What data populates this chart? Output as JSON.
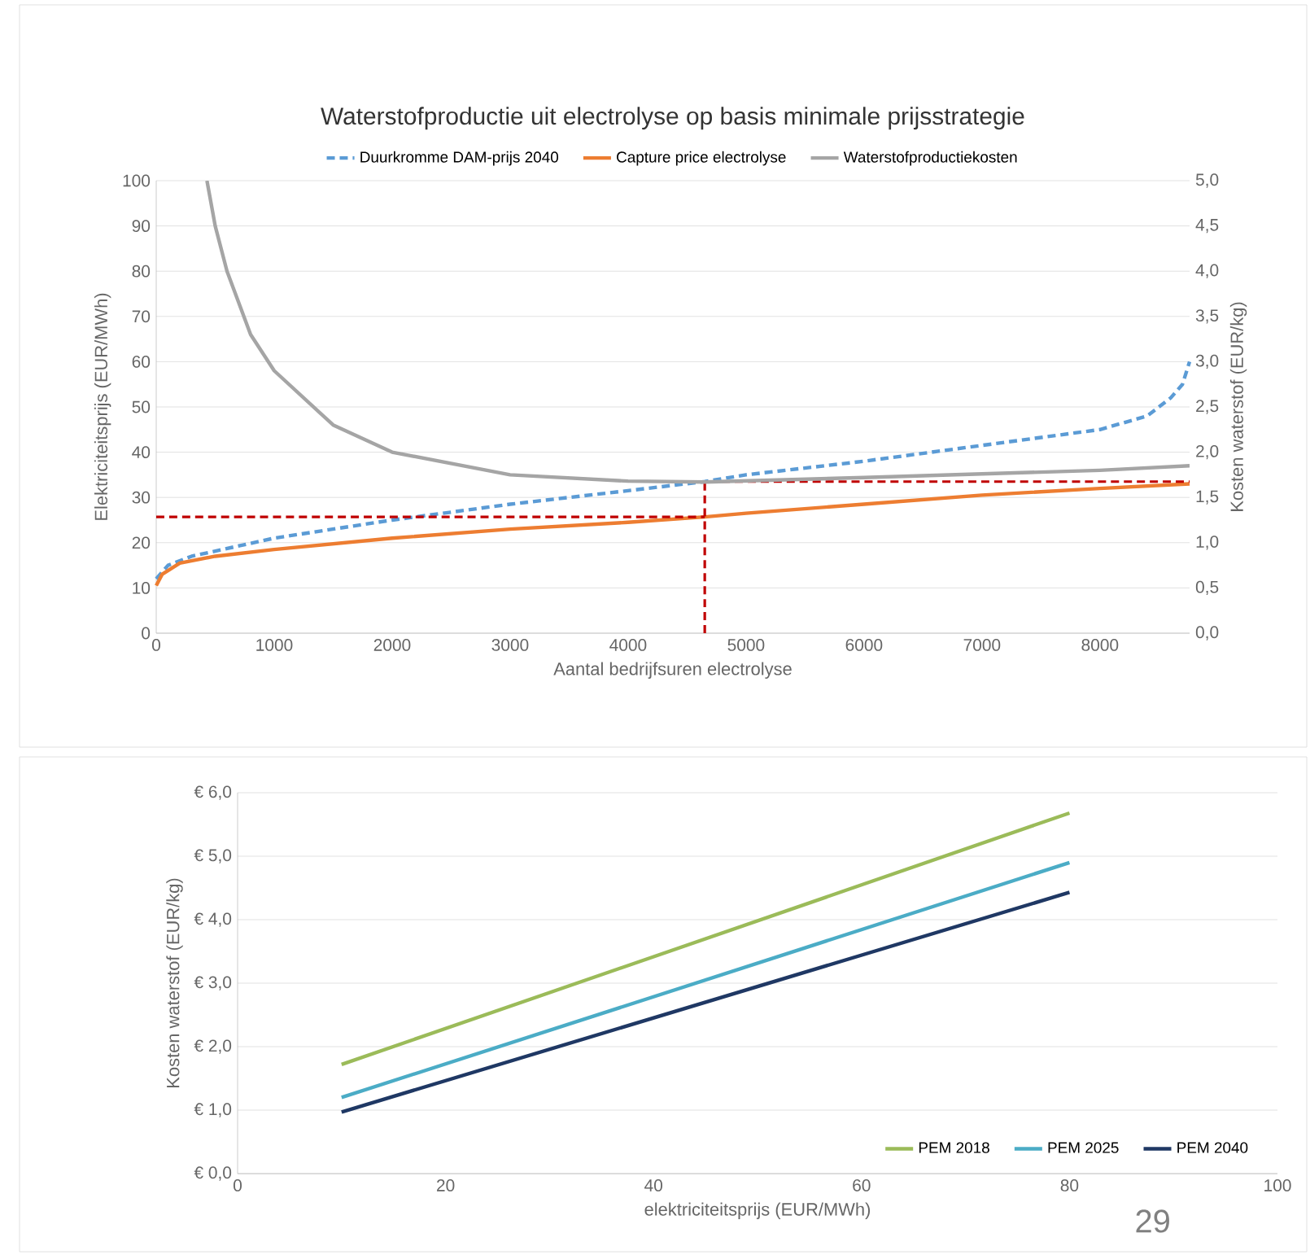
{
  "chart_data": [
    {
      "type": "line",
      "title": "Waterstofproductie uit electrolyse op basis minimale prijsstrategie",
      "xlabel": "Aantal bedrijfsuren electrolyse",
      "ylabel": "Elektriciteitsprijs (EUR/MWh)",
      "y2label": "Kosten waterstof (EUR/kg)",
      "xlim": [
        0,
        8760
      ],
      "xticks": [
        0,
        1000,
        2000,
        3000,
        4000,
        5000,
        6000,
        7000,
        8000
      ],
      "ylim": [
        0,
        100
      ],
      "yticks": [
        0,
        10,
        20,
        30,
        40,
        50,
        60,
        70,
        80,
        90,
        100
      ],
      "y2lim": [
        0,
        5
      ],
      "y2ticks": [
        {
          "value": 0,
          "label": "0,0"
        },
        {
          "value": 0.5,
          "label": "0,5"
        },
        {
          "value": 1,
          "label": "1,0"
        },
        {
          "value": 1.5,
          "label": "1,5"
        },
        {
          "value": 2,
          "label": "2,0"
        },
        {
          "value": 2.5,
          "label": "2,5"
        },
        {
          "value": 3,
          "label": "3,0"
        },
        {
          "value": 3.5,
          "label": "3,5"
        },
        {
          "value": 4,
          "label": "4,0"
        },
        {
          "value": 4.5,
          "label": "4,5"
        },
        {
          "value": 5,
          "label": "5,0"
        }
      ],
      "grid": "y",
      "legend": "top",
      "marker": "none",
      "series": [
        {
          "name": "Duurkromme DAM-prijs 2040",
          "color": "#5b9bd5",
          "line_style": "dashed",
          "x": [
            0,
            100,
            300,
            1000,
            2000,
            3000,
            4000,
            4650,
            5000,
            6000,
            7000,
            8000,
            8400,
            8600,
            8700,
            8760
          ],
          "values": [
            12,
            15,
            17,
            21,
            25,
            28.5,
            31.5,
            33.5,
            35,
            38,
            41.5,
            45,
            48,
            52,
            55,
            60
          ]
        },
        {
          "name": "Capture price electrolyse",
          "color": "#ed7d31",
          "line_style": "solid",
          "x": [
            0,
            50,
            200,
            500,
            1000,
            2000,
            3000,
            4000,
            4650,
            5000,
            6000,
            7000,
            8000,
            8760
          ],
          "values": [
            10.5,
            13,
            15.5,
            17,
            18.5,
            21,
            23,
            24.5,
            25.7,
            26.5,
            28.5,
            30.5,
            32,
            33
          ]
        },
        {
          "name": "Waterstofproductiekosten",
          "color": "#a5a5a5",
          "line_style": "solid",
          "axis": "y2",
          "x": [
            430,
            500,
            600,
            800,
            1000,
            1500,
            2000,
            3000,
            4000,
            4650,
            6000,
            7000,
            8000,
            8760
          ],
          "values": [
            5.0,
            4.5,
            4.0,
            3.3,
            2.9,
            2.3,
            2.0,
            1.75,
            1.68,
            1.67,
            1.72,
            1.76,
            1.8,
            1.85
          ]
        },
        {
          "color": "#c00000",
          "line_style": "dashed",
          "x": [
            0,
            4650
          ],
          "values": [
            25.7,
            25.7
          ]
        },
        {
          "color": "#c00000",
          "line_style": "dashed",
          "x": [
            4650,
            4650,
            8760
          ],
          "values": [
            0,
            33.5,
            33.5
          ]
        }
      ]
    },
    {
      "type": "line",
      "xlabel": "elektriciteitsprijs (EUR/MWh)",
      "ylabel": "Kosten waterstof (EUR/kg)",
      "annotations": [
        "29"
      ],
      "xlim": [
        0,
        100
      ],
      "xticks": [
        0,
        20,
        40,
        60,
        80,
        100
      ],
      "ylim": [
        0,
        6
      ],
      "yticks": [
        {
          "value": 0,
          "label": "€ 0,0"
        },
        {
          "value": 1,
          "label": "€ 1,0"
        },
        {
          "value": 2,
          "label": "€ 2,0"
        },
        {
          "value": 3,
          "label": "€ 3,0"
        },
        {
          "value": 4,
          "label": "€ 4,0"
        },
        {
          "value": 5,
          "label": "€ 5,0"
        },
        {
          "value": 6,
          "label": "€ 6,0"
        }
      ],
      "grid": "y",
      "legend": "bottom right",
      "marker": "none",
      "line_style": "solid",
      "series": [
        {
          "name": "PEM 2018",
          "color": "#9bbb59",
          "x": [
            10,
            80
          ],
          "values": [
            1.72,
            5.68
          ]
        },
        {
          "name": "PEM 2025",
          "color": "#4bacc6",
          "x": [
            10,
            80
          ],
          "values": [
            1.2,
            4.9
          ]
        },
        {
          "name": "PEM 2040",
          "color": "#1f3864",
          "x": [
            10,
            80
          ],
          "values": [
            0.97,
            4.43
          ]
        }
      ]
    }
  ]
}
